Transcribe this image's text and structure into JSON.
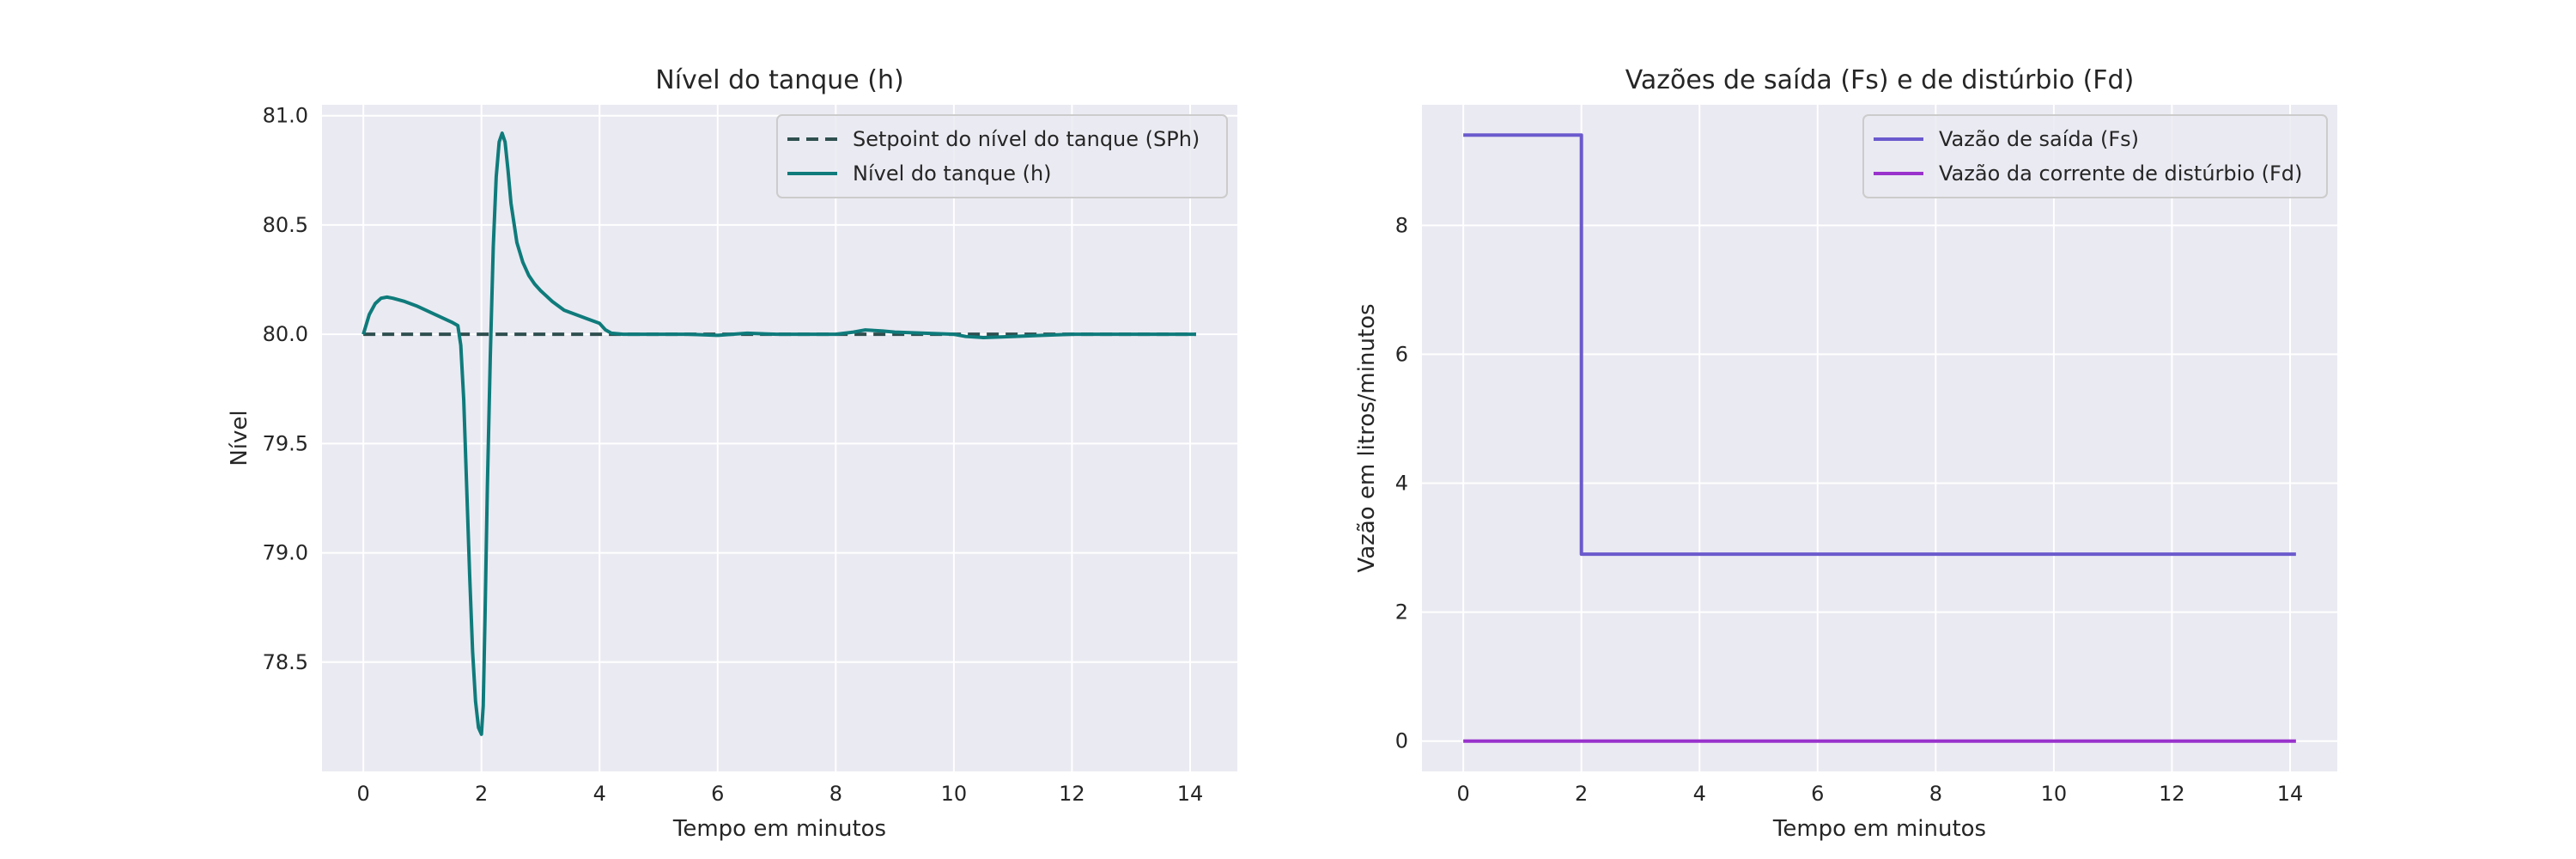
{
  "chart_data": [
    {
      "type": "line",
      "title": "Nível do tanque (h)",
      "xlabel": "Tempo em minutos",
      "ylabel": "Nível",
      "xlim": [
        -0.7,
        14.8
      ],
      "ylim": [
        78.0,
        81.05
      ],
      "xticks": [
        0,
        2,
        4,
        6,
        8,
        10,
        12,
        14
      ],
      "yticks": [
        78.5,
        79.0,
        79.5,
        80.0,
        80.5,
        81.0
      ],
      "grid": true,
      "legend_position": "top-right",
      "series": [
        {
          "name": "Setpoint do nível do tanque (SPh)",
          "color": "#2f4f4f",
          "dash": true,
          "x": [
            0,
            14.1
          ],
          "y": [
            80.0,
            80.0
          ]
        },
        {
          "name": "Nível do tanque (h)",
          "color": "#0f7b7b",
          "dash": false,
          "x": [
            0,
            0.1,
            0.2,
            0.3,
            0.4,
            0.5,
            0.7,
            0.9,
            1.1,
            1.3,
            1.5,
            1.6,
            1.65,
            1.7,
            1.75,
            1.8,
            1.85,
            1.9,
            1.95,
            2.0,
            2.03,
            2.06,
            2.1,
            2.15,
            2.2,
            2.25,
            2.3,
            2.35,
            2.4,
            2.45,
            2.5,
            2.6,
            2.7,
            2.8,
            2.9,
            3.0,
            3.2,
            3.4,
            3.6,
            3.8,
            4.0,
            4.1,
            4.2,
            4.4,
            4.6,
            5.0,
            5.5,
            6.0,
            6.5,
            7.0,
            7.5,
            8.0,
            8.3,
            8.5,
            8.8,
            9.0,
            9.5,
            10.0,
            10.2,
            10.5,
            11.0,
            11.5,
            12.0,
            13.0,
            14.1
          ],
          "y": [
            80.0,
            80.09,
            80.14,
            80.165,
            80.17,
            80.165,
            80.15,
            80.13,
            80.105,
            80.08,
            80.055,
            80.04,
            79.95,
            79.7,
            79.3,
            78.9,
            78.55,
            78.32,
            78.2,
            78.17,
            78.3,
            78.7,
            79.3,
            79.9,
            80.4,
            80.72,
            80.88,
            80.92,
            80.88,
            80.75,
            80.6,
            80.42,
            80.33,
            80.27,
            80.23,
            80.2,
            80.15,
            80.11,
            80.09,
            80.07,
            80.05,
            80.02,
            80.005,
            80.0,
            80.0,
            80.0,
            80.0,
            79.995,
            80.005,
            80.0,
            80.0,
            80.0,
            80.01,
            80.02,
            80.015,
            80.01,
            80.005,
            80.0,
            79.99,
            79.985,
            79.99,
            79.995,
            80.0,
            80.0,
            80.0
          ]
        }
      ]
    },
    {
      "type": "line",
      "title": "Vazões de saída (Fs) e de distúrbio (Fd)",
      "xlabel": "Tempo em minutos",
      "ylabel": "Vazão em litros/minutos",
      "xlim": [
        -0.7,
        14.8
      ],
      "ylim": [
        -0.47,
        9.87
      ],
      "xticks": [
        0,
        2,
        4,
        6,
        8,
        10,
        12,
        14
      ],
      "yticks": [
        0,
        2,
        4,
        6,
        8
      ],
      "grid": true,
      "legend_position": "top-right",
      "series": [
        {
          "name": "Vazão de saída (Fs)",
          "color": "#6a5acd",
          "dash": false,
          "x": [
            0,
            2.0,
            2.0,
            14.1
          ],
          "y": [
            9.4,
            9.4,
            2.9,
            2.9
          ]
        },
        {
          "name": "Vazão da corrente de distúrbio (Fd)",
          "color": "#9932cc",
          "dash": false,
          "x": [
            0,
            14.1
          ],
          "y": [
            0,
            0
          ]
        }
      ]
    }
  ]
}
